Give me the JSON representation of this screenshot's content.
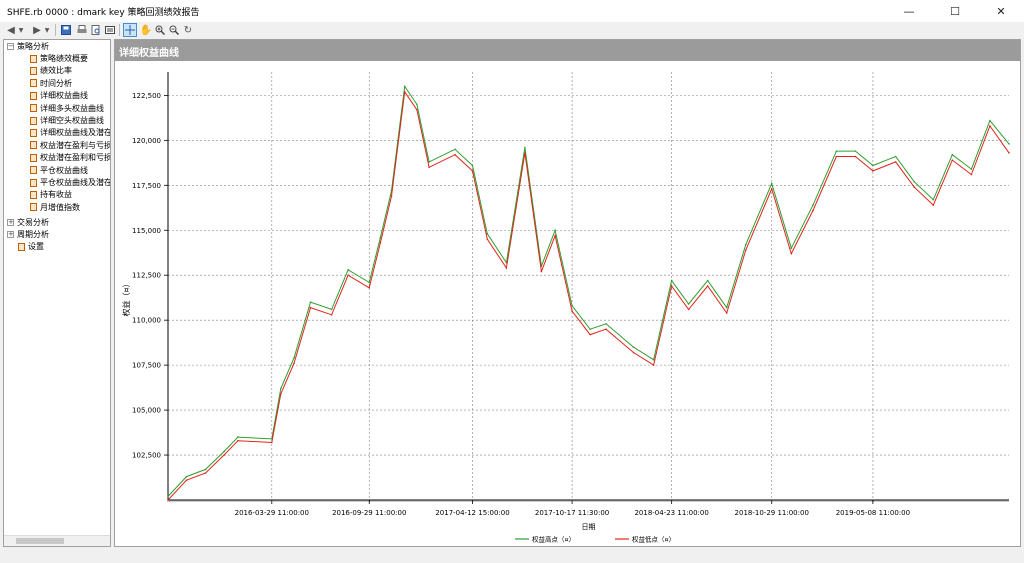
{
  "window": {
    "title": "SHFE.rb 0000 : dmark key 策略回测绩效报告",
    "minimize_glyph": "—",
    "maximize_glyph": "☐",
    "close_glyph": "✕"
  },
  "toolbar": {
    "buttons": [
      "back-icon",
      "dropdown-icon",
      "forward-icon",
      "dropdown-icon",
      "save-icon",
      "print-icon",
      "print-preview-icon",
      "export-icon",
      "crosshair-icon",
      "pan-hand-icon",
      "zoom-in-icon",
      "zoom-out-icon",
      "refresh-icon"
    ],
    "active_button": "crosshair-icon"
  },
  "sidebar": {
    "groups": [
      {
        "label": "策略分析",
        "expander": "−",
        "items": [
          "策略绩效概要",
          "绩效比率",
          "时间分析",
          "详细权益曲线",
          "详细多头权益曲线",
          "详细空头权益曲线",
          "详细权益曲线及潜在",
          "权益潜在盈利与亏损",
          "权益潜在盈利和亏损",
          "平仓权益曲线",
          "平仓权益曲线及潜在",
          "持有收益",
          "月增值指数"
        ]
      },
      {
        "label": "交易分析",
        "expander": "+",
        "items": []
      },
      {
        "label": "周期分析",
        "expander": "+",
        "items": []
      },
      {
        "label": "设置",
        "expander": "",
        "items": []
      }
    ]
  },
  "panel": {
    "title": "详细权益曲线"
  },
  "colors": {
    "high_series": "#2f9e2f",
    "low_series": "#e0241b",
    "header_bg": "#9b9b9b",
    "grid": "#808080"
  },
  "chart_data": {
    "type": "line",
    "title": "",
    "xlabel": "日期",
    "ylabel": "权益（¤）",
    "ylim": [
      100000,
      123800
    ],
    "yticks": [
      102500,
      105000,
      107500,
      110000,
      112500,
      115000,
      117500,
      120000,
      122500
    ],
    "ytick_labels": [
      "102,500",
      "105,000",
      "107,500",
      "110,000",
      "112,500",
      "115,000",
      "117,500",
      "120,000",
      "122,500"
    ],
    "xtick_labels": [
      "2016-03-29 11:00:00",
      "2016-09-29 11:00:00",
      "2017-04-12 15:00:00",
      "2017-10-17 11:30:00",
      "2018-04-23 11:00:00",
      "2018-10-29 11:00:00",
      "2019-05-08 11:00:00"
    ],
    "x": [
      "2015-09-15",
      "2015-10-20",
      "2015-11-25",
      "2015-12-30",
      "2016-01-25",
      "2016-03-29",
      "2016-04-15",
      "2016-05-10",
      "2016-06-10",
      "2016-07-20",
      "2016-08-20",
      "2016-09-29",
      "2016-10-20",
      "2016-11-10",
      "2016-12-05",
      "2016-12-28",
      "2017-01-20",
      "2017-03-10",
      "2017-04-12",
      "2017-05-10",
      "2017-06-15",
      "2017-07-20",
      "2017-08-20",
      "2017-09-15",
      "2017-10-17",
      "2017-11-20",
      "2017-12-20",
      "2018-02-10",
      "2018-03-20",
      "2018-04-23",
      "2018-05-25",
      "2018-06-30",
      "2018-08-05",
      "2018-09-10",
      "2018-10-29",
      "2018-12-05",
      "2019-01-15",
      "2019-02-28",
      "2019-04-05",
      "2019-05-08",
      "2019-06-20",
      "2019-07-25",
      "2019-08-30",
      "2019-10-05",
      "2019-11-10",
      "2019-12-15",
      "2020-01-20"
    ],
    "series": [
      {
        "name": "权益高点（¤）",
        "values": [
          100200,
          101300,
          101700,
          102700,
          103500,
          103400,
          106200,
          107900,
          111000,
          110600,
          112800,
          112100,
          114600,
          117200,
          123000,
          122000,
          118800,
          119500,
          118600,
          114800,
          113200,
          119600,
          113000,
          115000,
          110800,
          109500,
          109800,
          108500,
          107800,
          112200,
          110900,
          112200,
          110700,
          114200,
          117600,
          114000,
          116400,
          119400,
          119400,
          118600,
          119100,
          117700,
          116700,
          119200,
          118400,
          121100,
          119800
        ]
      },
      {
        "name": "权益低点（¤）",
        "values": [
          100000,
          101100,
          101500,
          102500,
          103300,
          103200,
          105900,
          107600,
          110700,
          110300,
          112500,
          111800,
          114300,
          116900,
          122700,
          121700,
          118500,
          119200,
          118300,
          114500,
          112900,
          119300,
          112700,
          114700,
          110500,
          109200,
          109500,
          108200,
          107500,
          111900,
          110600,
          111900,
          110400,
          113900,
          117300,
          113700,
          116100,
          119100,
          119100,
          118300,
          118800,
          117400,
          116400,
          118900,
          118100,
          120800,
          119300
        ]
      }
    ],
    "legend": [
      "权益高点（¤）",
      "权益低点（¤）"
    ],
    "legend_position": "bottom-center",
    "grid": true
  }
}
